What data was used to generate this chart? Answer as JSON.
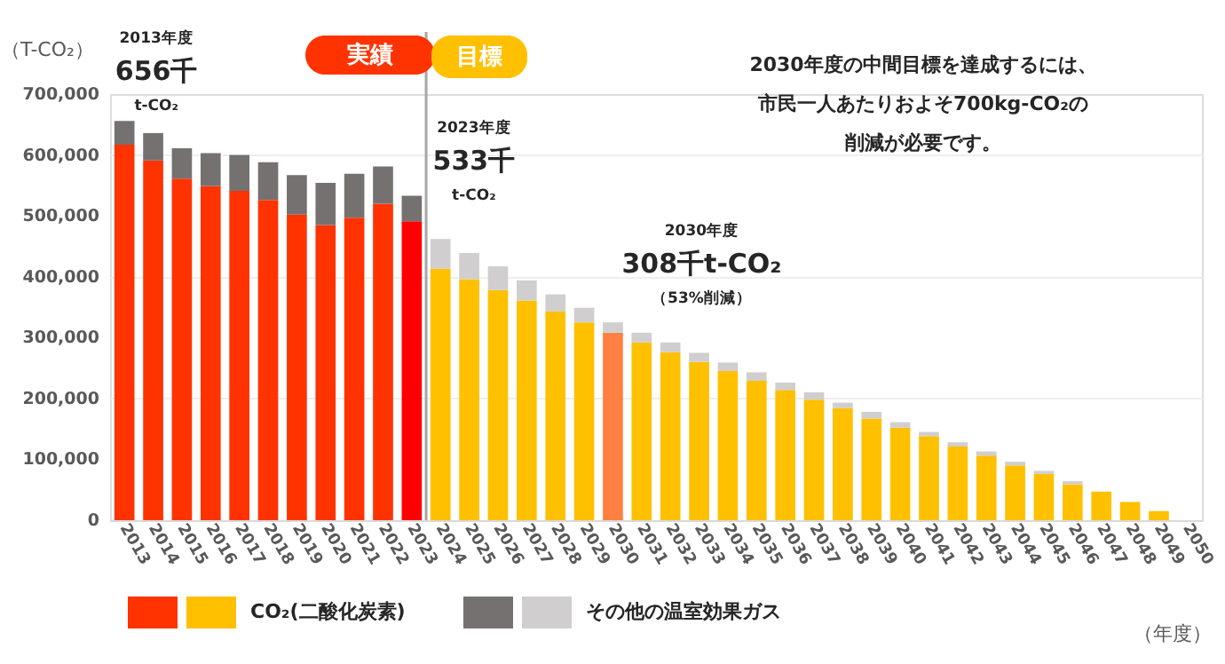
{
  "chart_data": {
    "type": "bar",
    "stacked": true,
    "categories": [
      "2013",
      "2014",
      "2015",
      "2016",
      "2017",
      "2018",
      "2019",
      "2020",
      "2021",
      "2022",
      "2023",
      "2024",
      "2025",
      "2026",
      "2027",
      "2028",
      "2029",
      "2030",
      "2031",
      "2032",
      "2033",
      "2034",
      "2035",
      "2036",
      "2037",
      "2038",
      "2039",
      "2040",
      "2041",
      "2042",
      "2043",
      "2044",
      "2045",
      "2046",
      "2047",
      "2048",
      "2049",
      "2050"
    ],
    "series": [
      {
        "name": "CO₂(二酸化炭素)",
        "colors": [
          "#ff3300",
          "#ff3300",
          "#ff3300",
          "#ff3300",
          "#ff3300",
          "#ff3300",
          "#ff3300",
          "#ff3300",
          "#ff3300",
          "#ff3300",
          "#ff0000",
          "#ffc000",
          "#ffc000",
          "#ffc000",
          "#ffc000",
          "#ffc000",
          "#ffc000",
          "#ff8040",
          "#ffc000",
          "#ffc000",
          "#ffc000",
          "#ffc000",
          "#ffc000",
          "#ffc000",
          "#ffc000",
          "#ffc000",
          "#ffc000",
          "#ffc000",
          "#ffc000",
          "#ffc000",
          "#ffc000",
          "#ffc000",
          "#ffc000",
          "#ffc000",
          "#ffc000",
          "#ffc000",
          "#ffc000",
          "#ffc000"
        ],
        "values": [
          617000,
          591000,
          561000,
          549000,
          541000,
          526000,
          502000,
          485000,
          497000,
          520000,
          491000,
          413000,
          396000,
          378000,
          361000,
          343000,
          325000,
          308000,
          292000,
          276000,
          260000,
          245000,
          229000,
          214000,
          198000,
          184000,
          167000,
          152000,
          138000,
          121000,
          106000,
          90000,
          76000,
          59000,
          47000,
          30000,
          15000,
          0
        ]
      },
      {
        "name": "その他の温室効果ガス",
        "colors": [
          "#767171",
          "#767171",
          "#767171",
          "#767171",
          "#767171",
          "#767171",
          "#767171",
          "#767171",
          "#767171",
          "#767171",
          "#767171",
          "#d0cece",
          "#d0cece",
          "#d0cece",
          "#d0cece",
          "#d0cece",
          "#d0cece",
          "#d0cece",
          "#d0cece",
          "#d0cece",
          "#d0cece",
          "#d0cece",
          "#d0cece",
          "#d0cece",
          "#d0cece",
          "#d0cece",
          "#d0cece",
          "#d0cece",
          "#d0cece",
          "#d0cece",
          "#d0cece",
          "#d0cece",
          "#d0cece",
          "#d0cece",
          "#d0cece",
          "#d0cece",
          "#d0cece",
          "#d0cece"
        ],
        "values": [
          39000,
          45000,
          50000,
          54000,
          59000,
          62000,
          65000,
          69000,
          72000,
          61000,
          42000,
          49000,
          43000,
          39000,
          33000,
          28000,
          24000,
          17000,
          16000,
          16000,
          15000,
          14000,
          14000,
          12000,
          12000,
          9000,
          11000,
          9000,
          7000,
          7000,
          7000,
          6000,
          5000,
          5000,
          0,
          0,
          0,
          0
        ]
      }
    ],
    "ylim": [
      0,
      700000
    ],
    "yticks": [
      0,
      {
        "value": 100000,
        "label": "100,000"
      },
      {
        "value": 200000,
        "label": "200,000"
      },
      {
        "value": 300000,
        "label": "300,000"
      },
      {
        "value": 400000,
        "label": "400,000"
      },
      {
        "value": 500000,
        "label": "500,000"
      },
      {
        "value": 600000,
        "label": "600,000"
      },
      {
        "value": 700000,
        "label": "700,000"
      }
    ],
    "grid": "y",
    "legend": "bottom",
    "ylabel": "（T-CO₂）",
    "xlabel": "（年度）",
    "ref_lines": [
      {
        "axis": "x",
        "value": "2024",
        "color": "#a6a6a6"
      }
    ],
    "annotations": [
      {
        "text": "2013年度\n656千\nt-CO₂",
        "x": "2013",
        "y": 656000
      },
      {
        "text": "2023年度\n533千\nt-CO₂",
        "x": "2023",
        "y": 533000
      },
      {
        "text": "2030年度\n308千t-CO₂\n（53%削減）",
        "x": "2030",
        "y": 308000
      },
      "実績",
      "目標",
      "2030年度の中間目標を達成するには、",
      "市民一人あたりおよそ700kg-CO₂の",
      "削減が必要です。"
    ]
  }
}
